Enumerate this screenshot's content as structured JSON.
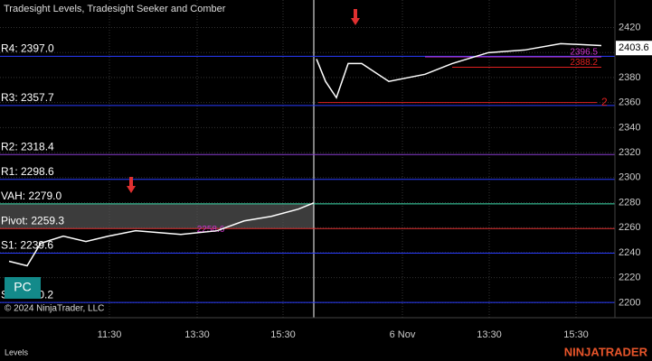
{
  "chart_data": {
    "type": "line",
    "title": "Tradesight Levels, Tradesight Seeker and Comber",
    "x": [
      10,
      30,
      45,
      70,
      95,
      120,
      150,
      200,
      240,
      270,
      300,
      330,
      347,
      null,
      350,
      360,
      372,
      385,
      400,
      430,
      470,
      500,
      540,
      580,
      620,
      665
    ],
    "series": [
      {
        "name": "Price",
        "color": "#ffffff",
        "values": [
          2233.1,
          2229.5,
          2247.5,
          2253.2,
          2248.9,
          2253.2,
          2257.5,
          2254.6,
          2257.5,
          2265.4,
          2269.0,
          2274.8,
          2279.8,
          null,
          2394.8,
          2376.9,
          2363.9,
          2391.2,
          2391.2,
          2376.9,
          2382.6,
          2391.2,
          2399.9,
          2402.0,
          2407.1,
          2405.6
        ]
      }
    ],
    "xlim": [
      0,
      680
    ],
    "xticks": [
      {
        "value": 121,
        "label": "11:30"
      },
      {
        "value": 218,
        "label": "13:30"
      },
      {
        "value": 313,
        "label": "15:30"
      },
      {
        "value": 445,
        "label": "6 Nov"
      },
      {
        "value": 541,
        "label": "13:30"
      },
      {
        "value": 637,
        "label": "15:30"
      }
    ],
    "ylim": [
      2188,
      2442
    ],
    "yticks": [
      2200,
      2220,
      2240,
      2260,
      2280,
      2300,
      2320,
      2340,
      2360,
      2380,
      2400,
      2420
    ],
    "grid": true,
    "levels": [
      {
        "label": "R4: 2397.0",
        "value": 2397.0,
        "color": "#2a3cff"
      },
      {
        "label": "R3: 2357.7",
        "value": 2357.7,
        "color": "#2a3cff"
      },
      {
        "label": "R2: 2318.4",
        "value": 2318.4,
        "color": "#8a3ccf"
      },
      {
        "label": "R1: 2298.6",
        "value": 2298.6,
        "color": "#2a3cff"
      },
      {
        "label": "VAH: 2279.0",
        "value": 2279.0,
        "color": "#40e0b0"
      },
      {
        "label": "Pivot: 2259.3",
        "value": 2259.3,
        "color": "#e03030"
      },
      {
        "label": "S1: 2239.6",
        "value": 2239.6,
        "color": "#2a3cff"
      },
      {
        "label": "S2: 2200.2",
        "value": 2200.2,
        "color": "#2a3cff"
      }
    ],
    "segments": [
      {
        "value": 2388.2,
        "x": [
          500,
          665
        ],
        "color": "#e02020"
      },
      {
        "value": 2396.5,
        "x": [
          470,
          665
        ],
        "color": "#cc33cc"
      },
      {
        "value": 2360,
        "label": "2",
        "x": [
          352,
          660
        ],
        "color": "#e02020"
      }
    ],
    "annotations": [
      {
        "text": "2258.6",
        "value": 2258.6,
        "x": 233,
        "color": "#cc33cc"
      }
    ],
    "current_price": 2403.6,
    "badge": "PC",
    "copyright": "© 2024 NinjaTrader, LLC",
    "tab": "Levels",
    "brand": "NINJATRADER"
  }
}
